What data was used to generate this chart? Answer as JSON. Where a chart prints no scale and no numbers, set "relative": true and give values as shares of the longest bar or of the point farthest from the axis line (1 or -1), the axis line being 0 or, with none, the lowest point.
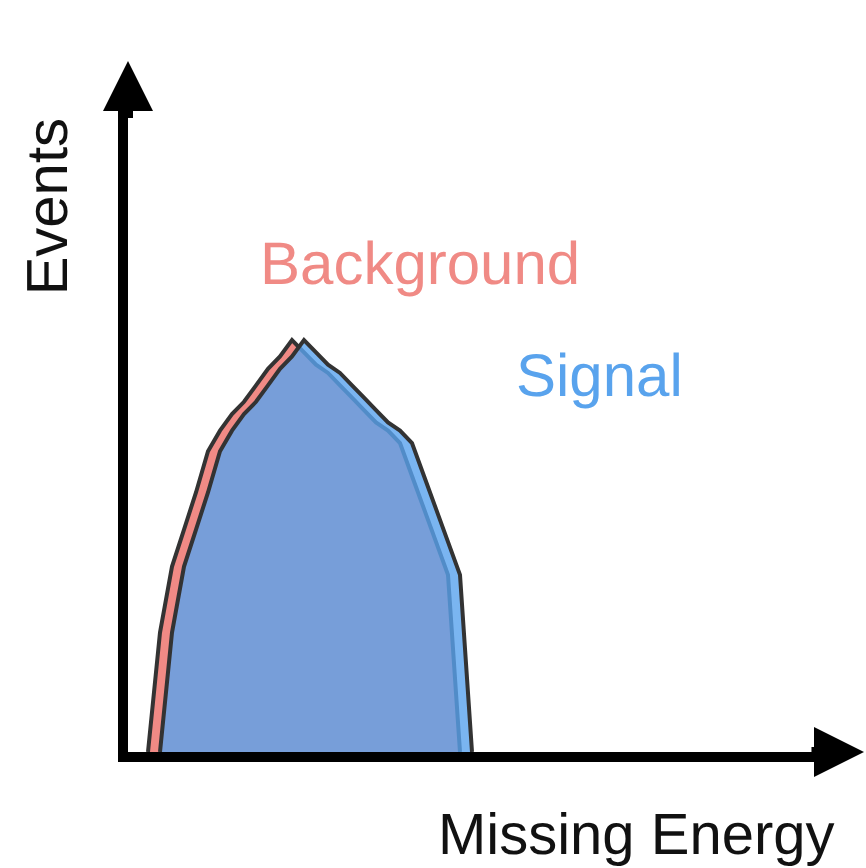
{
  "chart_data": {
    "type": "area",
    "relative": true,
    "xlabel": "Missing Energy",
    "ylabel": "Events",
    "categories": [
      null,
      null,
      null,
      null,
      null,
      null,
      null,
      null,
      null,
      null,
      null,
      null,
      null,
      null,
      null,
      null,
      null,
      null,
      null,
      null,
      null,
      null,
      null,
      null,
      null,
      null,
      null,
      null
    ],
    "series": [
      {
        "name": "Background",
        "color": "#f08a85",
        "values": [
          0,
          0.29,
          0.45,
          0.54,
          0.63,
          0.73,
          0.78,
          0.82,
          0.85,
          0.89,
          0.93,
          0.96,
          1,
          0.97,
          0.94,
          0.92,
          0.89,
          0.86,
          0.83,
          0.8,
          0.78,
          0.75,
          0.67,
          0.59,
          0.51,
          0.43,
          0,
          null
        ]
      },
      {
        "name": "Signal",
        "color": "#59a3ed",
        "values": [
          null,
          0,
          0.29,
          0.45,
          0.54,
          0.63,
          0.73,
          0.78,
          0.82,
          0.85,
          0.89,
          0.93,
          0.96,
          1,
          0.97,
          0.94,
          0.92,
          0.89,
          0.86,
          0.83,
          0.8,
          0.78,
          0.75,
          0.67,
          0.59,
          0.51,
          0.43,
          0
        ]
      }
    ],
    "legend": false
  }
}
